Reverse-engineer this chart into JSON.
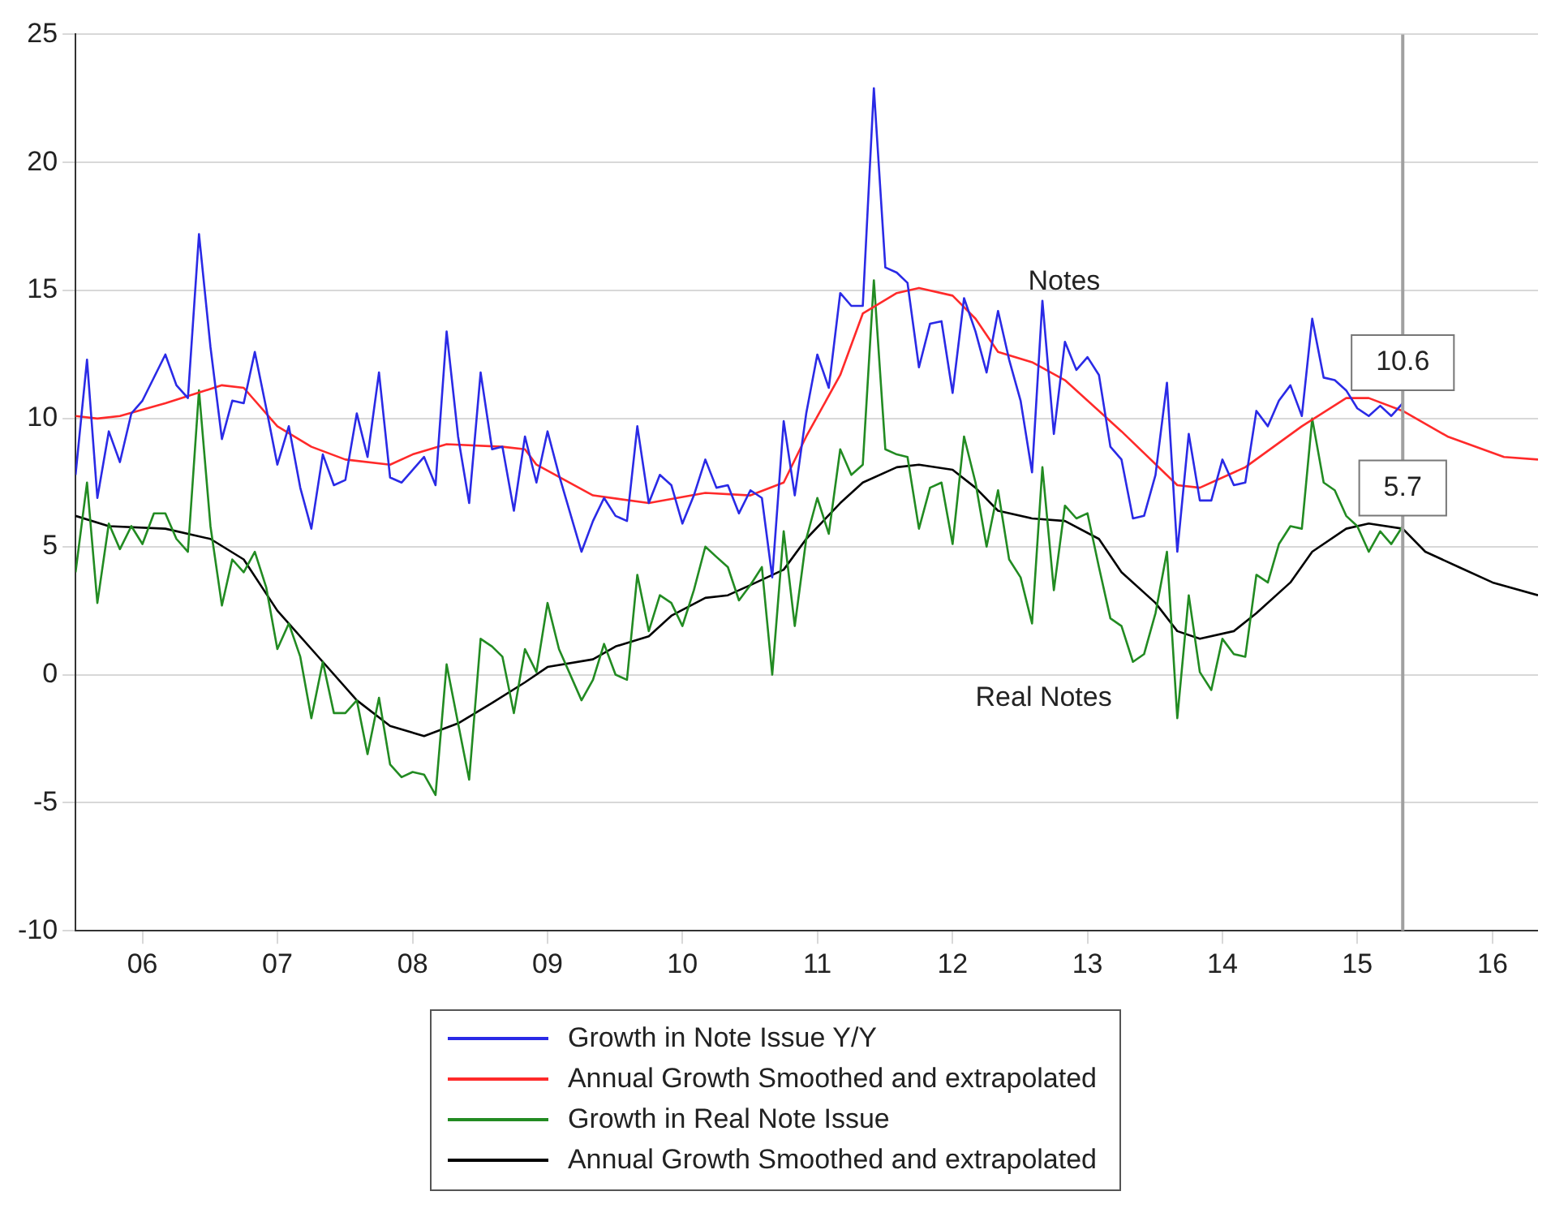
{
  "chart_data": {
    "type": "line",
    "xlim": [
      "2006-01",
      "2016-11"
    ],
    "xticks": [
      {
        "value": "2006-07",
        "label": "06"
      },
      {
        "value": "2007-07",
        "label": "07"
      },
      {
        "value": "2008-07",
        "label": "08"
      },
      {
        "value": "2009-07",
        "label": "09"
      },
      {
        "value": "2010-07",
        "label": "10"
      },
      {
        "value": "2011-07",
        "label": "11"
      },
      {
        "value": "2012-07",
        "label": "12"
      },
      {
        "value": "2013-07",
        "label": "13"
      },
      {
        "value": "2014-07",
        "label": "14"
      },
      {
        "value": "2015-07",
        "label": "15"
      },
      {
        "value": "2016-07",
        "label": "16"
      }
    ],
    "ylim": [
      -10,
      25
    ],
    "yticks": [
      -10,
      -5,
      0,
      5,
      10,
      15,
      20,
      25
    ],
    "grid": "y",
    "legend": "bottom",
    "marker": "none",
    "line_style": "solid",
    "ref_lines": [
      {
        "axis": "x",
        "value": "2015-11",
        "color": "#a0a0a0"
      }
    ],
    "annotations": [
      "Notes",
      "Real Notes",
      {
        "text": "10.6",
        "x": "2015-11",
        "y": 10.6
      },
      {
        "text": "5.7",
        "x": "2015-11",
        "y": 5.7
      }
    ],
    "series": [
      {
        "name": "Growth in Note Issue Y/Y",
        "color": "#2a2ae6",
        "x": [
          "2006-01",
          "2006-02",
          "2006-03",
          "2006-04",
          "2006-05",
          "2006-06",
          "2006-07",
          "2006-09",
          "2006-10",
          "2006-11",
          "2006-12",
          "2007-01",
          "2007-02",
          "2007-03",
          "2007-04",
          "2007-05",
          "2007-06",
          "2007-07",
          "2007-08",
          "2007-09",
          "2007-10",
          "2007-11",
          "2007-12",
          "2008-01",
          "2008-02",
          "2008-03",
          "2008-04",
          "2008-05",
          "2008-06",
          "2008-08",
          "2008-09",
          "2008-10",
          "2008-11",
          "2008-12",
          "2009-01",
          "2009-02",
          "2009-03",
          "2009-04",
          "2009-05",
          "2009-06",
          "2009-07",
          "2009-08",
          "2009-10",
          "2009-11",
          "2009-12",
          "2010-01",
          "2010-02",
          "2010-03",
          "2010-04",
          "2010-05",
          "2010-06",
          "2010-07",
          "2010-08",
          "2010-09",
          "2010-10",
          "2010-11",
          "2010-12",
          "2011-01",
          "2011-02",
          "2011-03",
          "2011-04",
          "2011-05",
          "2011-06",
          "2011-07",
          "2011-08",
          "2011-09",
          "2011-10",
          "2011-11",
          "2011-12",
          "2012-01",
          "2012-02",
          "2012-03",
          "2012-04",
          "2012-05",
          "2012-06",
          "2012-07",
          "2012-08",
          "2012-09",
          "2012-10",
          "2012-11",
          "2012-12",
          "2013-01",
          "2013-02",
          "2013-03",
          "2013-04",
          "2013-05",
          "2013-06",
          "2013-07",
          "2013-08",
          "2013-09",
          "2013-10",
          "2013-11",
          "2013-12",
          "2014-01",
          "2014-02",
          "2014-03",
          "2014-04",
          "2014-05",
          "2014-06",
          "2014-07",
          "2014-08",
          "2014-09",
          "2014-10",
          "2014-11",
          "2014-12",
          "2015-01",
          "2015-02",
          "2015-03",
          "2015-04",
          "2015-05",
          "2015-06",
          "2015-07",
          "2015-08",
          "2015-09",
          "2015-10",
          "2015-11"
        ],
        "values": [
          7.8,
          12.3,
          6.9,
          9.5,
          8.3,
          10.2,
          10.7,
          12.5,
          11.3,
          10.8,
          17.2,
          12.8,
          9.2,
          10.7,
          10.6,
          12.6,
          10.4,
          8.2,
          9.7,
          7.3,
          5.7,
          8.6,
          7.4,
          7.6,
          10.2,
          8.5,
          11.8,
          7.7,
          7.5,
          8.5,
          7.4,
          13.4,
          9.3,
          6.7,
          11.8,
          8.8,
          8.9,
          6.4,
          9.3,
          7.5,
          9.5,
          7.8,
          4.8,
          6.0,
          6.9,
          6.2,
          6.0,
          9.7,
          6.7,
          7.8,
          7.4,
          5.9,
          7.0,
          8.4,
          7.3,
          7.4,
          6.3,
          7.2,
          6.9,
          3.8,
          9.9,
          7.0,
          10.2,
          12.5,
          11.2,
          14.9,
          14.4,
          14.4,
          22.9,
          15.9,
          15.7,
          15.3,
          12.0,
          13.7,
          13.8,
          11.0,
          14.7,
          13.4,
          11.8,
          14.2,
          12.3,
          10.7,
          7.9,
          14.6,
          9.4,
          13.0,
          11.9,
          12.4,
          11.7,
          8.9,
          8.4,
          6.1,
          6.2,
          7.8,
          11.4,
          4.8,
          9.4,
          6.8,
          6.8,
          8.4,
          7.4,
          7.5,
          10.3,
          9.7,
          10.7,
          11.3,
          10.1,
          13.9,
          11.6,
          11.5,
          11.1,
          10.4,
          10.1,
          10.5,
          10.1,
          10.6
        ]
      },
      {
        "name": "Annual Growth Smoothed and extrapolated",
        "color": "#ff2a2a",
        "x": [
          "2006-01",
          "2006-03",
          "2006-05",
          "2006-09",
          "2007-02",
          "2007-04",
          "2007-07",
          "2007-10",
          "2008-01",
          "2008-05",
          "2008-07",
          "2008-10",
          "2009-03",
          "2009-05",
          "2009-06",
          "2009-11",
          "2010-04",
          "2010-09",
          "2011-01",
          "2011-04",
          "2011-06",
          "2011-09",
          "2011-11",
          "2012-02",
          "2012-04",
          "2012-07",
          "2012-09",
          "2012-11",
          "2013-02",
          "2013-05",
          "2013-10",
          "2014-03",
          "2014-05",
          "2014-09",
          "2015-02",
          "2015-06",
          "2015-08",
          "2015-11",
          "2016-03",
          "2016-08",
          "2016-11"
        ],
        "values": [
          10.1,
          10.0,
          10.1,
          10.6,
          11.3,
          11.2,
          9.7,
          8.9,
          8.4,
          8.2,
          8.6,
          9.0,
          8.9,
          8.8,
          8.2,
          7.0,
          6.7,
          7.1,
          7.0,
          7.5,
          9.3,
          11.7,
          14.1,
          14.9,
          15.1,
          14.8,
          13.9,
          12.6,
          12.2,
          11.5,
          9.5,
          7.4,
          7.3,
          8.1,
          9.7,
          10.8,
          10.8,
          10.3,
          9.3,
          8.5,
          8.4
        ]
      },
      {
        "name": "Growth in Real Note Issue",
        "color": "#228b22",
        "x": [
          "2006-01",
          "2006-02",
          "2006-03",
          "2006-04",
          "2006-05",
          "2006-06",
          "2006-07",
          "2006-08",
          "2006-09",
          "2006-10",
          "2006-11",
          "2006-12",
          "2007-01",
          "2007-02",
          "2007-03",
          "2007-04",
          "2007-05",
          "2007-06",
          "2007-07",
          "2007-08",
          "2007-09",
          "2007-10",
          "2007-11",
          "2007-12",
          "2008-01",
          "2008-02",
          "2008-03",
          "2008-04",
          "2008-05",
          "2008-06",
          "2008-07",
          "2008-08",
          "2008-09",
          "2008-10",
          "2008-11",
          "2008-12",
          "2009-01",
          "2009-02",
          "2009-03",
          "2009-04",
          "2009-05",
          "2009-06",
          "2009-07",
          "2009-08",
          "2009-10",
          "2009-11",
          "2009-12",
          "2010-01",
          "2010-02",
          "2010-03",
          "2010-04",
          "2010-05",
          "2010-06",
          "2010-07",
          "2010-08",
          "2010-09",
          "2010-10",
          "2010-11",
          "2010-12",
          "2011-01",
          "2011-02",
          "2011-03",
          "2011-04",
          "2011-05",
          "2011-06",
          "2011-07",
          "2011-08",
          "2011-09",
          "2011-10",
          "2011-11",
          "2011-12",
          "2012-01",
          "2012-02",
          "2012-03",
          "2012-04",
          "2012-05",
          "2012-06",
          "2012-07",
          "2012-08",
          "2012-09",
          "2012-10",
          "2012-11",
          "2012-12",
          "2013-01",
          "2013-02",
          "2013-03",
          "2013-04",
          "2013-05",
          "2013-06",
          "2013-07",
          "2013-08",
          "2013-09",
          "2013-10",
          "2013-11",
          "2013-12",
          "2014-01",
          "2014-02",
          "2014-03",
          "2014-04",
          "2014-05",
          "2014-06",
          "2014-07",
          "2014-08",
          "2014-09",
          "2014-10",
          "2014-11",
          "2014-12",
          "2015-01",
          "2015-02",
          "2015-03",
          "2015-04",
          "2015-05",
          "2015-06",
          "2015-07",
          "2015-08",
          "2015-09",
          "2015-10",
          "2015-11"
        ],
        "values": [
          4.0,
          7.5,
          2.8,
          5.9,
          4.9,
          5.8,
          5.1,
          6.3,
          6.3,
          5.3,
          4.8,
          11.1,
          5.8,
          2.7,
          4.5,
          4.0,
          4.8,
          3.4,
          1.0,
          2.0,
          0.7,
          -1.7,
          0.5,
          -1.5,
          -1.5,
          -1.0,
          -3.1,
          -0.9,
          -3.5,
          -4.0,
          -3.8,
          -3.9,
          -4.7,
          0.4,
          -1.9,
          -4.1,
          1.4,
          1.1,
          0.7,
          -1.5,
          1.0,
          0.1,
          2.8,
          1.0,
          -1.0,
          -0.2,
          1.2,
          0.0,
          -0.2,
          3.9,
          1.7,
          3.1,
          2.8,
          1.9,
          3.3,
          5.0,
          4.6,
          4.2,
          2.9,
          3.5,
          4.2,
          0.0,
          5.6,
          1.9,
          5.3,
          6.9,
          5.5,
          8.8,
          7.8,
          8.2,
          15.4,
          8.8,
          8.6,
          8.5,
          5.7,
          7.3,
          7.5,
          5.1,
          9.3,
          7.5,
          5.0,
          7.2,
          4.5,
          3.8,
          2.0,
          8.1,
          3.3,
          6.6,
          6.1,
          6.3,
          4.2,
          2.2,
          1.9,
          0.5,
          0.8,
          2.4,
          4.8,
          -1.7,
          3.1,
          0.1,
          -0.6,
          1.4,
          0.8,
          0.7,
          3.9,
          3.6,
          5.1,
          5.8,
          5.7,
          10.0,
          7.5,
          7.2,
          6.2,
          5.8,
          4.8,
          5.6,
          5.1,
          5.8
        ]
      },
      {
        "name": "Annual Growth Smoothed and extrapolated",
        "color": "#000000",
        "x": [
          "2006-01",
          "2006-04",
          "2006-09",
          "2007-01",
          "2007-04",
          "2007-07",
          "2007-11",
          "2008-02",
          "2008-05",
          "2008-08",
          "2008-11",
          "2009-02",
          "2009-05",
          "2009-07",
          "2009-11",
          "2010-01",
          "2010-04",
          "2010-06",
          "2010-09",
          "2010-11",
          "2011-01",
          "2011-04",
          "2011-06",
          "2011-09",
          "2011-11",
          "2012-02",
          "2012-04",
          "2012-07",
          "2012-09",
          "2012-11",
          "2013-02",
          "2013-05",
          "2013-08",
          "2013-10",
          "2014-01",
          "2014-03",
          "2014-05",
          "2014-08",
          "2014-10",
          "2015-01",
          "2015-03",
          "2015-06",
          "2015-08",
          "2015-11",
          "2016-01",
          "2016-04",
          "2016-07",
          "2016-11"
        ],
        "values": [
          6.2,
          5.8,
          5.7,
          5.3,
          4.5,
          2.5,
          0.5,
          -1.0,
          -2.0,
          -2.4,
          -1.9,
          -1.1,
          -0.3,
          0.3,
          0.6,
          1.1,
          1.5,
          2.3,
          3.0,
          3.1,
          3.5,
          4.1,
          5.3,
          6.7,
          7.5,
          8.1,
          8.2,
          8.0,
          7.3,
          6.4,
          6.1,
          6.0,
          5.3,
          4.0,
          2.8,
          1.7,
          1.4,
          1.7,
          2.4,
          3.6,
          4.8,
          5.7,
          5.9,
          5.7,
          4.8,
          4.2,
          3.6,
          3.1
        ]
      }
    ]
  }
}
